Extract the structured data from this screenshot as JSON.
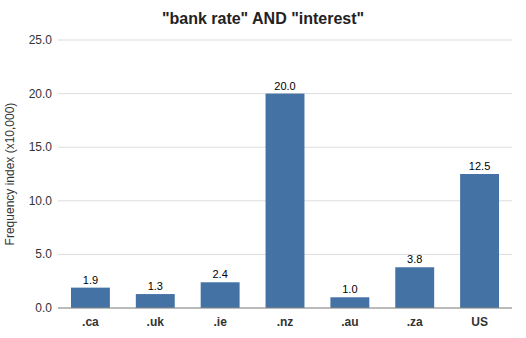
{
  "chart_data": {
    "type": "bar",
    "title": "\"bank rate\" AND \"interest\"",
    "categories": [
      ".ca",
      ".uk",
      ".ie",
      ".nz",
      ".au",
      ".za",
      "US"
    ],
    "values": [
      1.9,
      1.3,
      2.4,
      20.0,
      1.0,
      3.8,
      12.5
    ],
    "value_labels": [
      "1.9",
      "1.3",
      "2.4",
      "20.0",
      "1.0",
      "3.8",
      "12.5"
    ],
    "data_labels": true,
    "color": "#4472a4",
    "ylabel": "Frequency index (x10,000)",
    "ylim": [
      0,
      25
    ],
    "yticks": [
      {
        "value": 0.0,
        "label": "0.0"
      },
      {
        "value": 5.0,
        "label": "5.0"
      },
      {
        "value": 10.0,
        "label": "10.0"
      },
      {
        "value": 15.0,
        "label": "15.0"
      },
      {
        "value": 20.0,
        "label": "20.0"
      },
      {
        "value": 25.0,
        "label": "25.0"
      }
    ],
    "grid": true
  }
}
